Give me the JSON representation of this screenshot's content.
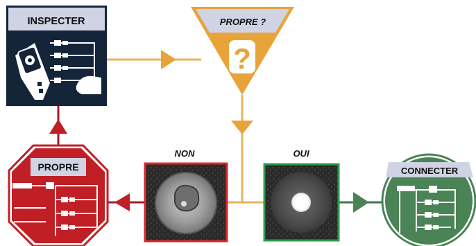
{
  "nodes": {
    "inspect": {
      "label": "INSPECTER"
    },
    "decision": {
      "label": "PROPRE ?",
      "symbol": "?"
    },
    "clean": {
      "label": "PROPRE"
    },
    "connect": {
      "label": "CONNECTER"
    }
  },
  "results": {
    "no": {
      "label": "NON"
    },
    "yes": {
      "label": "OUI"
    }
  },
  "colors": {
    "navy": "#14253a",
    "orange": "#e8a33b",
    "orange_line": "#e7b45f",
    "red": "#c01f25",
    "dark_red": "#a51b25",
    "green": "#4a8355",
    "green_border": "#2f9a4d",
    "header_grey": "#cfd3e3"
  },
  "icons": {
    "inspect": "fiber-inspection-probe-icon",
    "clean": "fiber-cleaning-icon",
    "connect": "fiber-connector-icon"
  }
}
